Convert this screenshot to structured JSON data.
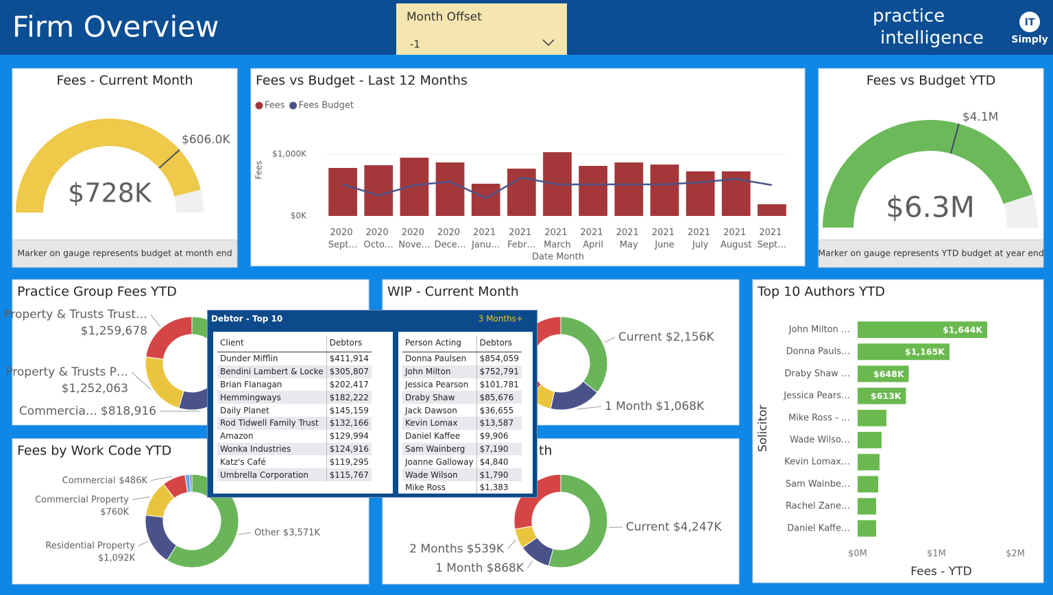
{
  "header": {
    "title": "Firm Overview",
    "slicer_label": "Month Offset",
    "slicer_value": "-1",
    "logo_top": "practice",
    "logo_bottom": "intelligence",
    "badge_top": "IT",
    "badge_bottom": "Simply"
  },
  "chart_data": [
    {
      "type": "gauge",
      "title": "Fees - Current Month",
      "value": 728000,
      "value_label": "$728K",
      "target": 606000,
      "target_label": "$606.0K",
      "range": [
        0,
        790000
      ],
      "color": "#eec94a",
      "note": "Marker on gauge represents budget at month end"
    },
    {
      "type": "combo",
      "title": "Fees vs Budget - Last 12 Months",
      "categories": [
        "2020 Sept…",
        "2020 Octo…",
        "2020 Nove…",
        "2020 Dece…",
        "2021 Janu…",
        "2021 Febr…",
        "2021 March",
        "2021 April",
        "2021 May",
        "2021 June",
        "2021 July",
        "2021 August",
        "2021 Sept…"
      ],
      "series": [
        {
          "name": "Fees",
          "color": "#a4373a",
          "values": [
            778000,
            822000,
            944000,
            867000,
            522000,
            767000,
            1033000,
            811000,
            867000,
            833000,
            722000,
            722000,
            189000
          ]
        },
        {
          "name": "Fees Budget",
          "color": "#4a5389",
          "values": [
            511000,
            333000,
            500000,
            556000,
            289000,
            622000,
            511000,
            511000,
            511000,
            511000,
            544000,
            600000,
            500000
          ]
        }
      ],
      "ylim": [
        0,
        1100000
      ],
      "yticks": [
        {
          "value": 0,
          "label": "$0K"
        },
        {
          "value": 1000000,
          "label": "$1,000K"
        }
      ],
      "ylabel": "Fees",
      "xlabel": "Date Month",
      "grid": true,
      "legend": "top-left"
    },
    {
      "type": "gauge",
      "title": "Fees vs Budget YTD",
      "value": 6300000,
      "value_label": "$6.3M",
      "target": 4100000,
      "target_label": "$4.1M",
      "range": [
        0,
        7000000
      ],
      "color": "#6cb95a",
      "note": "Marker on gauge represents YTD budget at year end"
    },
    {
      "type": "donut",
      "title": "Practice Group Fees YTD",
      "categories": [
        null,
        "Commercia…",
        "Property & Trusts P…",
        "Property & Trusts Trust…"
      ],
      "values": [
        2200000,
        818916,
        1252063,
        1259678
      ],
      "value_labels": [
        null,
        "$818,916",
        "$1,252,063",
        "$1,259,678"
      ],
      "colors": [
        "#6ab55a",
        "#4a5389",
        "#eac43d",
        "#d64545"
      ]
    },
    {
      "type": "donut",
      "title": "WIP - Current Month",
      "categories": [
        "Current",
        "1 Month",
        null,
        null
      ],
      "values": [
        2156000,
        1068000,
        500000,
        2300000
      ],
      "value_labels": [
        "$2,156K",
        "$1,068K",
        null,
        null
      ],
      "colors": [
        "#6ab55a",
        "#4a5389",
        "#eac43d",
        "#d64545"
      ]
    },
    {
      "type": "donut",
      "title": "Fees by Work Code YTD",
      "categories": [
        "Other",
        "Residential Property",
        "Commercial Property",
        "Commercial",
        null,
        null
      ],
      "values": [
        3571000,
        1092000,
        760000,
        486000,
        100000,
        45000
      ],
      "value_labels": [
        "$3,571K",
        "$1,092K",
        "$760K",
        "$486K",
        null,
        null
      ],
      "colors": [
        "#6ab55a",
        "#4a5389",
        "#eac43d",
        "#d64545",
        "#61a9e6",
        "#8f6dc6"
      ]
    },
    {
      "type": "donut",
      "title": "th",
      "categories": [
        "Current",
        "1 Month",
        "2 Months",
        null
      ],
      "values": [
        4247000,
        868000,
        539000,
        2180000
      ],
      "value_labels": [
        "$4,247K",
        "$868K",
        "$539K",
        null
      ],
      "colors": [
        "#6ab55a",
        "#4a5389",
        "#eac43d",
        "#d64545"
      ]
    },
    {
      "type": "hbar",
      "title": "Top 10 Authors YTD",
      "categories": [
        "John Milton …",
        "Donna Pauls…",
        "Draby Shaw …",
        "Jessica Pears…",
        "Mike Ross - …",
        "Wade Wilso…",
        "Kevin Lomax…",
        "Sam Wainbe…",
        "Rachel Zane…",
        "Daniel Kaffe…"
      ],
      "values": [
        1644000,
        1165000,
        648000,
        613000,
        365000,
        304000,
        278000,
        261000,
        235000,
        235000
      ],
      "value_labels": [
        "$1,644K",
        "$1,165K",
        "$648K",
        "$613K",
        null,
        null,
        null,
        null,
        null,
        null
      ],
      "xlim": [
        0,
        2000000
      ],
      "xticks": [
        {
          "value": 0,
          "label": "$0M"
        },
        {
          "value": 1000000,
          "label": "$1M"
        },
        {
          "value": 2000000,
          "label": "$2M"
        }
      ],
      "xlabel": "Fees - YTD",
      "ylabel": "Solicitor",
      "color": "#6ab94f"
    }
  ],
  "tooltip": {
    "title": "Debtor - Top 10",
    "filter": "3 Months+",
    "tables": [
      {
        "columns": [
          "Client",
          "Debtors"
        ],
        "rows": [
          [
            "Dunder Mifflin",
            "$411,914"
          ],
          [
            "Bendini Lambert & Locke",
            "$305,807"
          ],
          [
            "Brian Flanagan",
            "$202,417"
          ],
          [
            "Hemmingways",
            "$182,222"
          ],
          [
            "Daily Planet",
            "$145,159"
          ],
          [
            "Rod Tidwell Family Trust",
            "$132,166"
          ],
          [
            "Amazon",
            "$129,994"
          ],
          [
            "Wonka Industries",
            "$124,916"
          ],
          [
            "Katz's Café",
            "$119,295"
          ],
          [
            "Umbrella Corporation",
            "$115,767"
          ]
        ]
      },
      {
        "columns": [
          "Person Acting",
          "Debtors"
        ],
        "rows": [
          [
            "Donna Paulsen",
            "$854,059"
          ],
          [
            "John Milton",
            "$752,791"
          ],
          [
            "Jessica Pearson",
            "$101,781"
          ],
          [
            "Draby Shaw",
            "$85,676"
          ],
          [
            "Jack Dawson",
            "$36,655"
          ],
          [
            "Kevin Lomax",
            "$13,587"
          ],
          [
            "Daniel Kaffee",
            "$9,906"
          ],
          [
            "Sam Wainberg",
            "$7,190"
          ],
          [
            "Joanne Galloway",
            "$4,840"
          ],
          [
            "Wade Wilson",
            "$1,790"
          ],
          [
            "Mike Ross",
            "$1,383"
          ]
        ]
      }
    ]
  }
}
